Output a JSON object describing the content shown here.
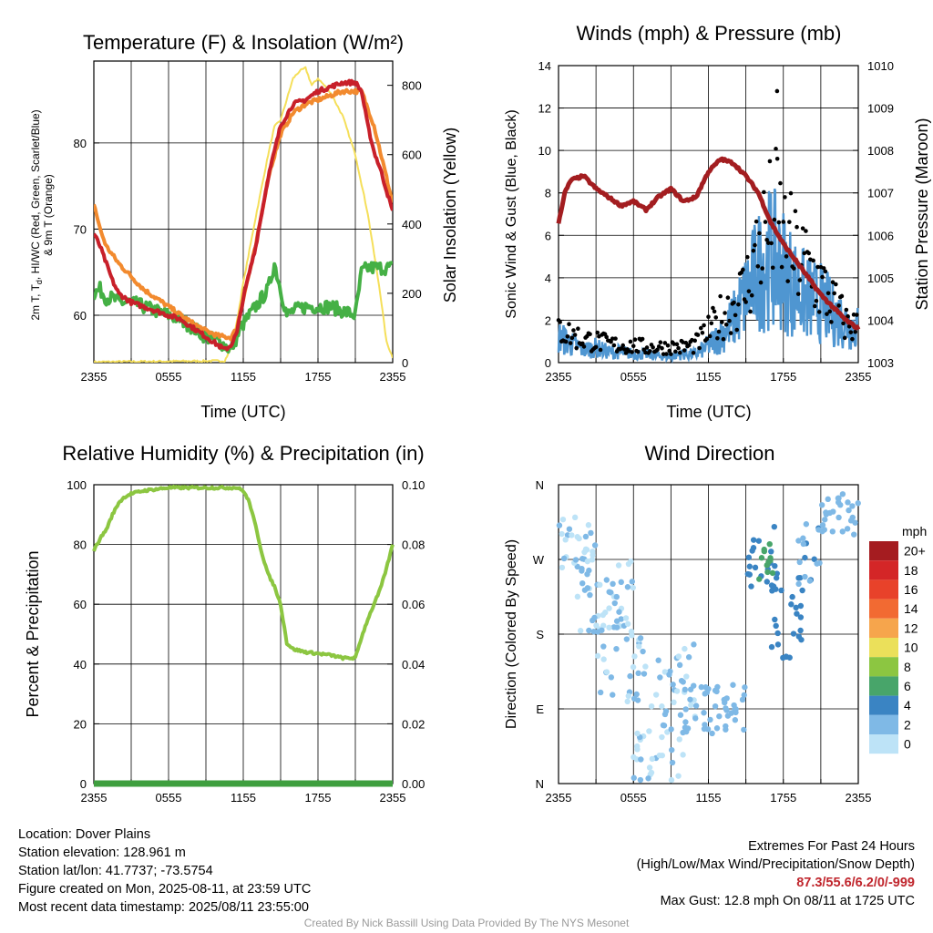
{
  "colors": {
    "red": "#c8202a",
    "orange": "#f28a2e",
    "green": "#3fae3f",
    "yellow": "#f5df5a",
    "maroon": "#a31d20",
    "blue": "#4f96d1",
    "black": "#000000",
    "rh_green": "#8cc641",
    "precip_green": "#3f9f3f",
    "dewpoint_green": "#45b045"
  },
  "chart_data": [
    {
      "id": "temperature",
      "type": "line",
      "title": "Temperature (F) & Insolation (W/m²)",
      "xlabel": "Time (UTC)",
      "ylabel_left_lines": [
        "2m T, T",
        "d",
        ", HI/WC (Red, Green, Scarlet/Blue)",
        "& 9m T (Orange)"
      ],
      "ylabel_left": "2m T, Td, HI/WC (Red, Green, Scarlet/Blue) & 9m T (Orange)",
      "ylabel_right": "Solar Insolation (Yellow)",
      "x_ticks": [
        "2355",
        "0555",
        "1155",
        "1755",
        "2355"
      ],
      "x_range_hours": [
        0,
        24
      ],
      "ylim_left": [
        54.5,
        89.5
      ],
      "yticks_left": [
        60,
        70,
        80
      ],
      "ylim_right": [
        0,
        870
      ],
      "yticks_right": [
        0,
        200,
        400,
        600,
        800
      ],
      "series": [
        {
          "key": "temp_9m",
          "color_key": "orange",
          "x": [
            0,
            0.5,
            1,
            2,
            3,
            4,
            5,
            6,
            7,
            8,
            9,
            10,
            11,
            11.5,
            12,
            13,
            14,
            15,
            16,
            17,
            18,
            19,
            20,
            21,
            21.5,
            22,
            22.5,
            23,
            23.5,
            24
          ],
          "y": [
            73,
            70,
            68,
            66,
            64.5,
            63,
            62,
            61,
            60,
            59,
            58.2,
            57.6,
            57.4,
            58.5,
            62,
            68,
            76,
            81,
            83.5,
            84.5,
            85,
            85.5,
            86,
            86,
            86,
            84,
            82,
            79,
            76,
            73
          ]
        },
        {
          "key": "temp_2m",
          "color_key": "red",
          "x": [
            0,
            0.5,
            1,
            1.5,
            2,
            2.5,
            3,
            4,
            5,
            6,
            7,
            8,
            9,
            10,
            10.5,
            11,
            11.5,
            12,
            13,
            14,
            15,
            16,
            17,
            17.5,
            18,
            19,
            20,
            20.5,
            21,
            21.5,
            22,
            22.5,
            23,
            23.5,
            24
          ],
          "y": [
            69.5,
            68,
            66,
            64,
            62.5,
            62,
            61.5,
            61,
            60.5,
            60,
            59.5,
            58.5,
            57.5,
            56.5,
            56,
            56.5,
            58,
            62,
            68,
            76,
            82,
            84.5,
            85,
            85.5,
            86,
            86.5,
            87,
            87,
            87,
            86,
            82,
            79,
            77,
            74.5,
            72
          ]
        },
        {
          "key": "dewpoint",
          "color_key": "dewpoint_green",
          "x": [
            0,
            0.5,
            1,
            1.5,
            2,
            3,
            4,
            5,
            6,
            7,
            8,
            9,
            10,
            10.5,
            11,
            11.5,
            12,
            13,
            14,
            14.5,
            15,
            15.5,
            16,
            17,
            18,
            19,
            20,
            21,
            21.5,
            22,
            23,
            24
          ],
          "y": [
            62.5,
            63,
            62,
            62,
            61.5,
            61.5,
            61,
            60.5,
            60,
            59.5,
            58.5,
            57.5,
            57,
            56.5,
            56,
            57.5,
            59,
            61,
            63,
            66,
            63,
            60,
            60.5,
            61,
            61,
            61,
            60.5,
            60,
            65,
            65.5,
            65.5,
            65.5
          ]
        },
        {
          "key": "insolation",
          "color_key": "yellow",
          "axis": "right",
          "x": [
            0,
            10.5,
            11,
            11.5,
            12,
            13,
            14,
            14.5,
            15,
            15.5,
            16,
            16.5,
            17,
            17.5,
            18,
            19,
            20,
            21,
            22,
            23,
            23.5,
            24
          ],
          "y": [
            2,
            5,
            40,
            120,
            230,
            420,
            600,
            680,
            700,
            760,
            820,
            840,
            850,
            800,
            820,
            780,
            710,
            600,
            430,
            200,
            60,
            15
          ]
        }
      ]
    },
    {
      "id": "winds",
      "type": "scatter",
      "title": "Winds (mph) & Pressure (mb)",
      "xlabel": "Time (UTC)",
      "ylabel_left": "Sonic Wind & Gust (Blue, Black)",
      "ylabel_right": "Station Pressure (Maroon)",
      "x_ticks": [
        "2355",
        "0555",
        "1155",
        "1755",
        "2355"
      ],
      "x_range_hours": [
        0,
        24
      ],
      "ylim_left": [
        0,
        14
      ],
      "yticks_left": [
        0,
        2,
        4,
        6,
        8,
        10,
        12,
        14
      ],
      "ylim_right": [
        1003,
        1010
      ],
      "yticks_right": [
        1003,
        1004,
        1005,
        1006,
        1007,
        1008,
        1009,
        1010
      ],
      "max_gust_mph": 12.8,
      "max_gust_time_hours": 17.5,
      "pressure": {
        "x": [
          0,
          0.5,
          1,
          2,
          3,
          4,
          5,
          6,
          7,
          8,
          9,
          10,
          11,
          12,
          13,
          14,
          15,
          16,
          17,
          18,
          19,
          20,
          21,
          22,
          23,
          24
        ],
        "y": [
          1006.3,
          1007.0,
          1007.3,
          1007.4,
          1007.1,
          1006.9,
          1006.7,
          1006.8,
          1006.6,
          1006.9,
          1007.1,
          1006.8,
          1006.9,
          1007.5,
          1007.8,
          1007.7,
          1007.4,
          1007.0,
          1006.3,
          1005.8,
          1005.4,
          1005.0,
          1004.6,
          1004.3,
          1004.0,
          1003.8
        ]
      },
      "wind_band": {
        "x": [
          0,
          1,
          2,
          3,
          4,
          5,
          6,
          7,
          8,
          9,
          10,
          11,
          12,
          13,
          14,
          15,
          16,
          17,
          18,
          19,
          20,
          21,
          22,
          23,
          24
        ],
        "y": [
          1.2,
          0.9,
          0.6,
          0.7,
          0.5,
          0.5,
          0.4,
          0.4,
          0.3,
          0.3,
          0.4,
          0.4,
          0.8,
          1.3,
          2.0,
          3.2,
          4.3,
          5.0,
          4.4,
          3.5,
          3.0,
          2.8,
          2.3,
          1.9,
          1.6
        ]
      },
      "gust_envelope": {
        "x": [
          0,
          1,
          2,
          3,
          4,
          5,
          6,
          7,
          8,
          9,
          10,
          11,
          12,
          13,
          14,
          15,
          16,
          17,
          17.5,
          18,
          19,
          20,
          21,
          22,
          23,
          24
        ],
        "y": [
          2.2,
          1.8,
          1.5,
          1.4,
          1.2,
          1.1,
          1.1,
          1.0,
          1.0,
          1.0,
          1.0,
          1.2,
          2.0,
          3.0,
          3.8,
          4.8,
          7.5,
          9.0,
          9.5,
          8.2,
          6.8,
          6.2,
          5.0,
          3.8,
          2.6,
          2.2
        ]
      }
    },
    {
      "id": "humidity",
      "type": "line",
      "title": "Relative Humidity (%) & Precipitation (in)",
      "ylabel_left": "Percent & Precipitation",
      "x_ticks": [
        "2355",
        "0555",
        "1155",
        "1755",
        "2355"
      ],
      "x_range_hours": [
        0,
        24
      ],
      "ylim_left": [
        0,
        100
      ],
      "yticks_left": [
        0,
        20,
        40,
        60,
        80,
        100
      ],
      "ylim_right": [
        0,
        0.1
      ],
      "yticks_right": [
        "0.00",
        "0.02",
        "0.04",
        "0.06",
        "0.08",
        "0.10"
      ],
      "series": [
        {
          "key": "rh",
          "color_key": "rh_green",
          "x": [
            0,
            0.5,
            1,
            1.5,
            2,
            2.5,
            3,
            4,
            5,
            6,
            7,
            8,
            9,
            10,
            11,
            11.5,
            12,
            12.5,
            13,
            13.5,
            14,
            14.5,
            15,
            15.5,
            16,
            17,
            18,
            19,
            20,
            21,
            21.5,
            22,
            22.5,
            23,
            23.5,
            24
          ],
          "y": [
            78,
            82,
            85,
            90,
            94,
            96,
            97,
            98,
            98.5,
            99,
            99,
            99,
            99,
            99,
            99,
            99,
            98,
            94,
            86,
            77,
            70,
            66,
            60,
            47,
            45,
            44,
            43.5,
            43,
            42,
            42,
            49,
            55,
            60,
            65,
            72,
            80
          ]
        },
        {
          "key": "precip",
          "color_key": "precip_green",
          "axis": "right",
          "x": [
            0,
            24
          ],
          "y": [
            0,
            0
          ]
        }
      ]
    },
    {
      "id": "wind_direction",
      "type": "scatter",
      "title": "Wind Direction",
      "ylabel_left": "Direction (Colored By Speed)",
      "x_ticks": [
        "2355",
        "0555",
        "1155",
        "1755",
        "2355"
      ],
      "x_range_hours": [
        0,
        24
      ],
      "y_ticks": [
        "N",
        "E",
        "S",
        "W",
        "N"
      ],
      "ylim_deg": [
        0,
        360
      ],
      "legend_title": "mph",
      "legend_labels": [
        "20+",
        "18",
        "16",
        "14",
        "12",
        "10",
        "8",
        "6",
        "4",
        "2",
        "0"
      ],
      "legend_colors": [
        "#a51c20",
        "#d42627",
        "#e8422a",
        "#f26a32",
        "#f6a54c",
        "#ebe05a",
        "#8cc641",
        "#48a56a",
        "#3a84c3",
        "#7fb9e6",
        "#bde3f7"
      ],
      "clusters": [
        {
          "x0": 0,
          "x1": 3,
          "ymin": 260,
          "ymax": 330,
          "speed": 1
        },
        {
          "x0": 1,
          "x1": 6,
          "ymin": 180,
          "ymax": 270,
          "speed": 1
        },
        {
          "x0": 3,
          "x1": 7,
          "ymin": 90,
          "ymax": 200,
          "speed": 1
        },
        {
          "x0": 6,
          "x1": 10,
          "ymin": 0,
          "ymax": 110,
          "speed": 1
        },
        {
          "x0": 8,
          "x1": 11,
          "ymin": 60,
          "ymax": 180,
          "speed": 1
        },
        {
          "x0": 10,
          "x1": 15,
          "ymin": 60,
          "ymax": 120,
          "speed": 2
        },
        {
          "x0": 15,
          "x1": 17.5,
          "ymin": 230,
          "ymax": 310,
          "speed": 4
        },
        {
          "x0": 16,
          "x1": 17.2,
          "ymin": 240,
          "ymax": 290,
          "speed": 6
        },
        {
          "x0": 17,
          "x1": 19.5,
          "ymin": 150,
          "ymax": 250,
          "speed": 4
        },
        {
          "x0": 19,
          "x1": 21,
          "ymin": 230,
          "ymax": 320,
          "speed": 3
        },
        {
          "x0": 21,
          "x1": 24,
          "ymin": 300,
          "ymax": 350,
          "speed": 2
        }
      ]
    }
  ],
  "info_left": {
    "location": "Location: Dover Plains",
    "elevation": "Station elevation: 128.961 m",
    "latlon": "Station lat/lon: 41.7737; -73.5754",
    "created": "Figure created on Mon, 2025-08-11, at 23:59 UTC",
    "recent": "Most recent data timestamp: 2025/08/11 23:55:00"
  },
  "info_right": {
    "header": "Extremes For Past 24 Hours",
    "subheader": "(High/Low/Max Wind/Precipitation/Snow Depth)",
    "values": "87.3/55.6/6.2/0/-999",
    "gust": "Max Gust: 12.8 mph On 08/11 at 1725 UTC"
  },
  "credit": "Created By Nick Bassill Using Data Provided By The NYS Mesonet"
}
